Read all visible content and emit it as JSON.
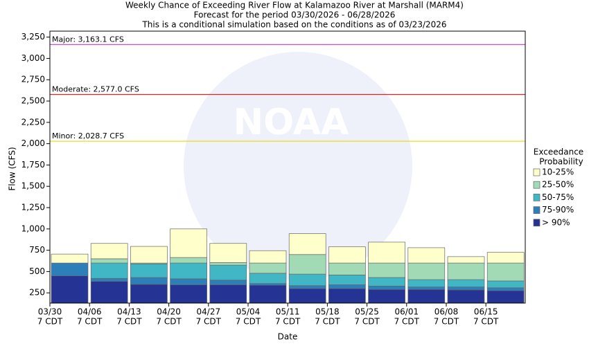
{
  "chart_data": {
    "type": "stacked-range-bar",
    "title": "Weekly Chance of Exceeding River Flow at Kalamazoo River at Marshall (MARM4)",
    "subtitle": [
      "Forecast for the period 03/30/2026 - 06/28/2026",
      "This is a conditional simulation based on the conditions as of 03/23/2026"
    ],
    "watermark": "NOAA",
    "x_label": "Date",
    "y_label": "Flow (CFS)",
    "categories": [
      [
        "03/30",
        "7 CDT"
      ],
      [
        "04/06",
        "7 CDT"
      ],
      [
        "04/13",
        "7 CDT"
      ],
      [
        "04/20",
        "7 CDT"
      ],
      [
        "04/27",
        "7 CDT"
      ],
      [
        "05/04",
        "7 CDT"
      ],
      [
        "05/11",
        "7 CDT"
      ],
      [
        "05/18",
        "7 CDT"
      ],
      [
        "05/25",
        "7 CDT"
      ],
      [
        "06/01",
        "7 CDT"
      ],
      [
        "06/08",
        "7 CDT"
      ],
      [
        "06/15",
        "7 CDT"
      ]
    ],
    "legend_title": [
      "Exceedance",
      "Probability"
    ],
    "series": [
      {
        "name": "10-25%",
        "color": "#ffffcc",
        "values": [
          705,
          830,
          795,
          1000,
          830,
          745,
          945,
          790,
          845,
          780,
          675,
          725
        ]
      },
      {
        "name": "25-50%",
        "color": "#a1dab4",
        "values": [
          600,
          650,
          600,
          665,
          605,
          600,
          700,
          600,
          600,
          600,
          600,
          600
        ]
      },
      {
        "name": "50-75%",
        "color": "#41b6c4",
        "values": [
          600,
          600,
          590,
          600,
          575,
          480,
          470,
          460,
          430,
          405,
          405,
          390
        ]
      },
      {
        "name": "75-90%",
        "color": "#2c7fb8",
        "values": [
          600,
          420,
          430,
          415,
          400,
          360,
          335,
          345,
          330,
          320,
          320,
          310
        ]
      },
      {
        "name": "> 90%",
        "color": "#253494",
        "values": [
          450,
          385,
          350,
          345,
          345,
          340,
          300,
          300,
          290,
          290,
          285,
          275
        ]
      }
    ],
    "thresholds": [
      {
        "value": 3163.1,
        "label": "Major: 3,163.1 CFS",
        "color": "#cc33cc"
      },
      {
        "value": 2577.0,
        "label": "Moderate: 2,577.0 CFS",
        "color": "#dd2222"
      },
      {
        "value": 2028.7,
        "label": "Minor: 2,028.7 CFS",
        "color": "#e8d800"
      }
    ],
    "ylim": [
      130,
      3320
    ],
    "yticks": [
      250,
      500,
      750,
      {
        "value": 1000,
        "label": "1,000"
      },
      {
        "value": 1250,
        "label": "1,250"
      },
      {
        "value": 1500,
        "label": "1,500"
      },
      {
        "value": 1750,
        "label": "1,750"
      },
      {
        "value": 2000,
        "label": "2,000"
      },
      {
        "value": 2250,
        "label": "2,250"
      },
      {
        "value": 2500,
        "label": "2,500"
      },
      {
        "value": 2750,
        "label": "2,750"
      },
      {
        "value": 3000,
        "label": "3,000"
      },
      {
        "value": 3250,
        "label": "3,250"
      }
    ],
    "grid": false
  }
}
